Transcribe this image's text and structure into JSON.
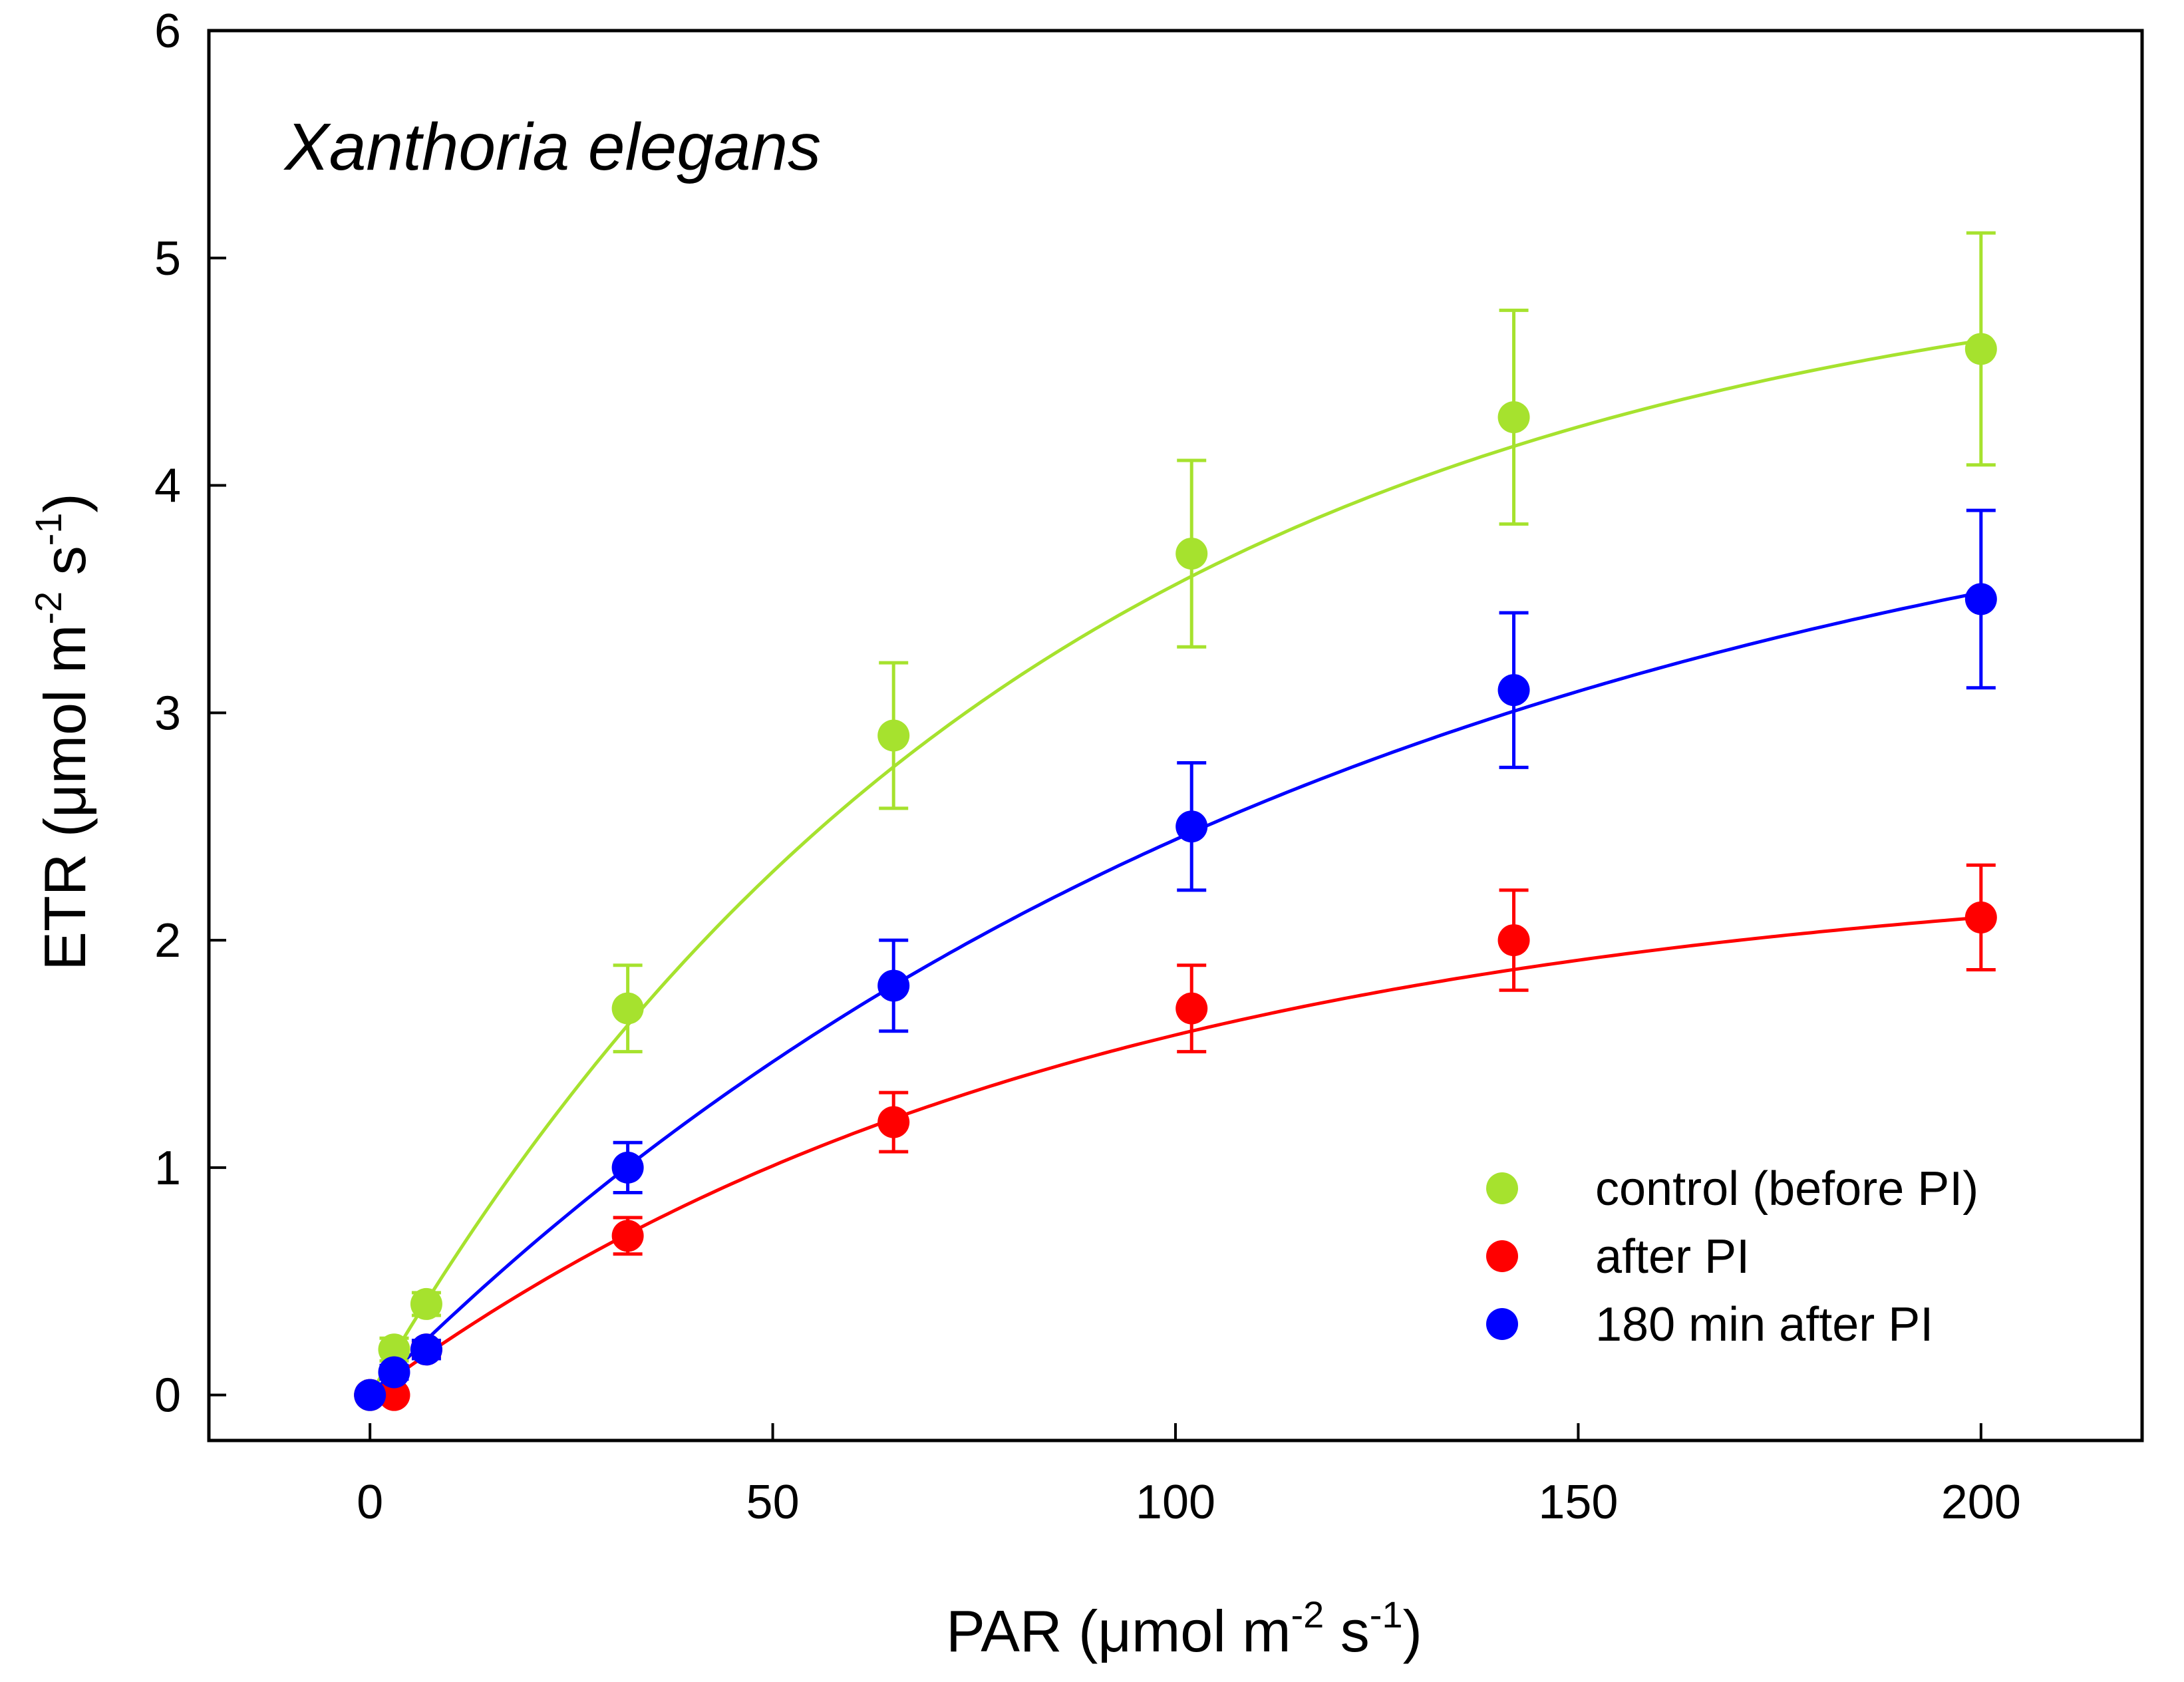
{
  "chart_data": {
    "type": "scatter",
    "annotation": "Xanthoria elegans",
    "xlabel": {
      "prefix": "PAR (",
      "mu": "μ",
      "main1": "mol m",
      "sup1": "-2",
      "main2": " s",
      "sup2": "-1",
      "suffix": ")"
    },
    "ylabel": {
      "prefix": "ETR (",
      "mu": "μ",
      "main1": "mol m",
      "sup1": "-2",
      "main2": " s",
      "sup2": "-1",
      "suffix": ")"
    },
    "xlim": [
      -20,
      220
    ],
    "ylim": [
      -0.2,
      6
    ],
    "xticks": [
      0,
      50,
      100,
      150,
      200
    ],
    "yticks": [
      0,
      1,
      2,
      3,
      4,
      5,
      6
    ],
    "legend_position": "bottom-right",
    "series": [
      {
        "name": "control (before PI)",
        "color": "#a6e22e",
        "x": [
          0,
          3,
          7,
          32,
          65,
          102,
          142,
          200
        ],
        "y": [
          0,
          0.2,
          0.4,
          1.7,
          2.9,
          3.7,
          4.3,
          4.6
        ],
        "err": [
          0,
          0.05,
          0.05,
          0.19,
          0.32,
          0.41,
          0.47,
          0.51
        ],
        "fit": {
          "a": 5.1,
          "k": 0.012
        }
      },
      {
        "name": "after PI",
        "color": "#ff0000",
        "x": [
          0,
          3,
          7,
          32,
          65,
          102,
          142,
          200
        ],
        "y": [
          0,
          0,
          0.2,
          0.7,
          1.2,
          1.7,
          2.0,
          2.1
        ],
        "err": [
          0,
          0.02,
          0.03,
          0.08,
          0.13,
          0.19,
          0.22,
          0.23
        ],
        "fit": {
          "a": 2.35,
          "k": 0.0112
        }
      },
      {
        "name": "180 min after PI",
        "color": "#0000ff",
        "x": [
          0,
          3,
          7,
          32,
          65,
          102,
          142,
          200
        ],
        "y": [
          0,
          0.1,
          0.2,
          1.0,
          1.8,
          2.5,
          3.1,
          3.5
        ],
        "err": [
          0,
          0.03,
          0.04,
          0.11,
          0.2,
          0.28,
          0.34,
          0.39
        ],
        "fit": {
          "a": 4.4,
          "k": 0.0081
        }
      }
    ]
  }
}
